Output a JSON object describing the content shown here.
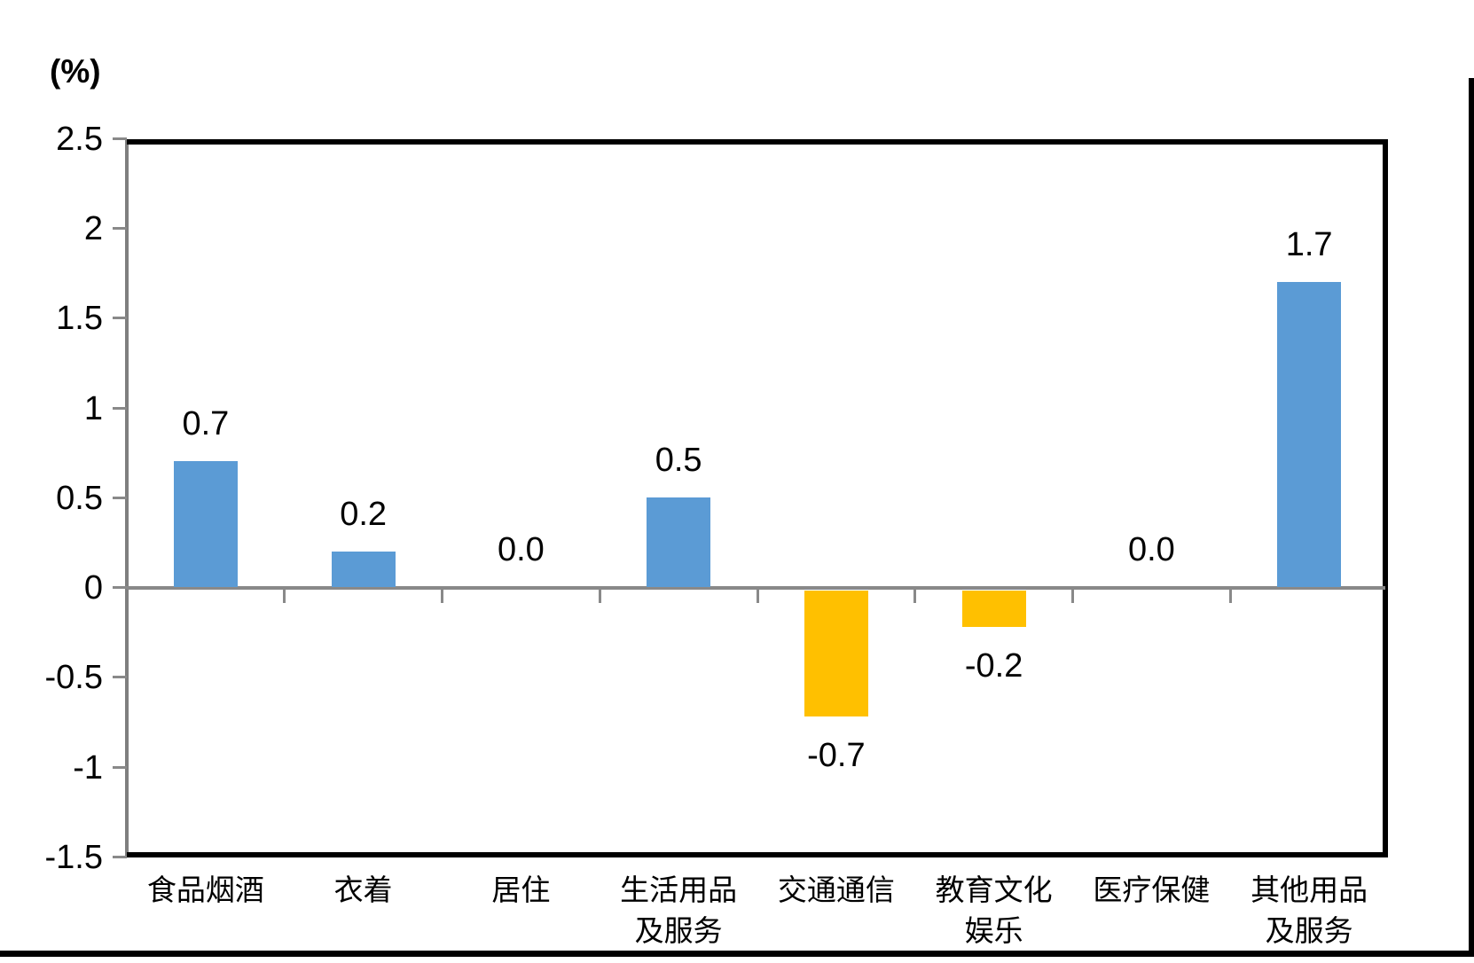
{
  "unit_label": "(%)",
  "colors": {
    "positive_bar": "#5B9BD5",
    "negative_bar": "#FFC000",
    "axis_gray": "#898989",
    "frame_black": "#000000"
  },
  "chart_data": {
    "type": "bar",
    "title": "",
    "xlabel": "",
    "ylabel": "(%)",
    "categories": [
      "食品烟酒",
      "衣着",
      "居住",
      "生活用品\n及服务",
      "交通通信",
      "教育文化\n娱乐",
      "医疗保健",
      "其他用品\n及服务"
    ],
    "values": [
      0.7,
      0.2,
      0.0,
      0.5,
      -0.7,
      -0.2,
      0.0,
      1.7
    ],
    "data_labels": [
      "0.7",
      "0.2",
      "0.0",
      "0.5",
      "-0.7",
      "-0.2",
      "0.0",
      "1.7"
    ],
    "y_tick_values": [
      2.5,
      2,
      1.5,
      1,
      0.5,
      0,
      -0.5,
      -1,
      -1.5
    ],
    "y_tick_labels": [
      "2.5",
      "2",
      "1.5",
      "1",
      "0.5",
      "0",
      "-0.5",
      "-1",
      "-1.5"
    ],
    "ylim": [
      -1.5,
      2.5
    ],
    "grid": false,
    "legend": false,
    "bar_color_rule": "positive bars blue, negative bars yellow"
  }
}
